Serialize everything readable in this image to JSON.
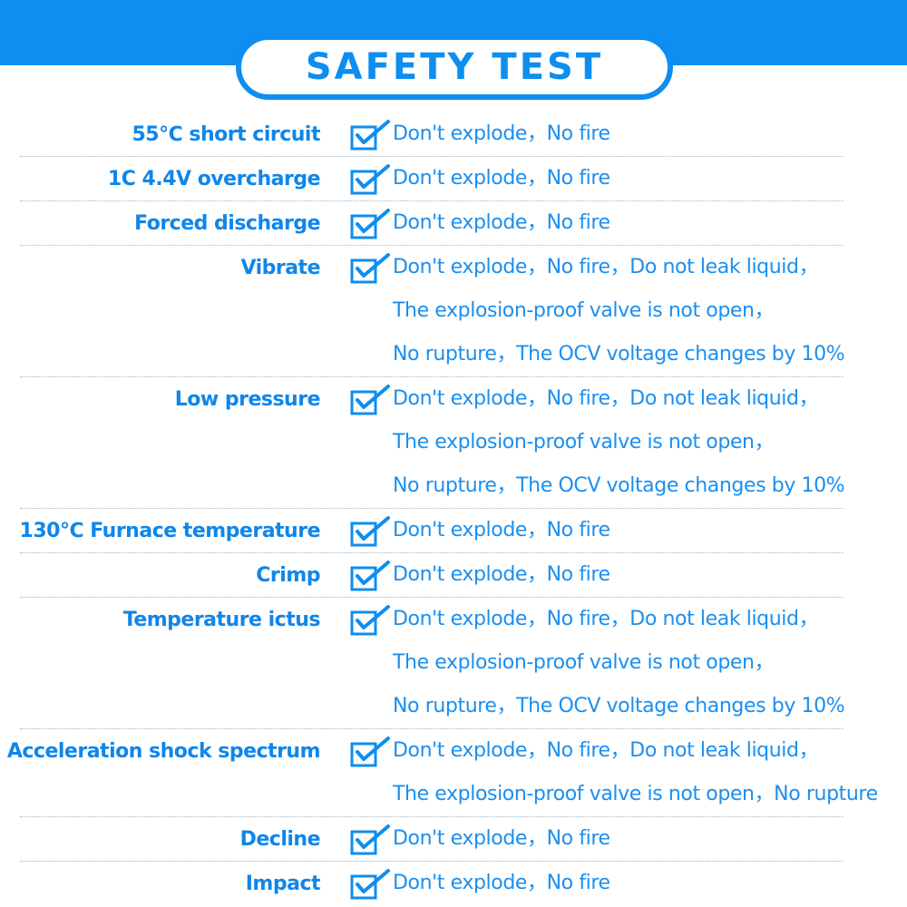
{
  "header": {
    "title": "SAFETY TEST",
    "accent_color": "#0d8ef0"
  },
  "tests": [
    {
      "name": "55℃ short circuit",
      "icon": "checked-box-icon",
      "result_lines": [
        "Don't explode，No fire"
      ]
    },
    {
      "name": "1C 4.4V overcharge",
      "icon": "checked-box-icon",
      "result_lines": [
        "Don't explode，No fire"
      ]
    },
    {
      "name": "Forced discharge",
      "icon": "checked-box-icon",
      "result_lines": [
        "Don't explode，No fire"
      ]
    },
    {
      "name": "Vibrate",
      "icon": "checked-box-icon",
      "result_lines": [
        "Don't explode，No fire，Do not leak liquid，",
        "The explosion-proof valve is not open，",
        "No rupture，The OCV voltage changes by 10%"
      ]
    },
    {
      "name": "Low pressure",
      "icon": "checked-box-icon",
      "result_lines": [
        "Don't explode，No fire，Do not leak liquid，",
        "The explosion-proof valve is not open，",
        "No rupture，The OCV voltage changes by 10%"
      ]
    },
    {
      "name": "130℃ Furnace temperature",
      "icon": "checked-box-icon",
      "result_lines": [
        "Don't explode，No fire"
      ]
    },
    {
      "name": "Crimp",
      "icon": "checked-box-icon",
      "result_lines": [
        "Don't explode，No fire"
      ]
    },
    {
      "name": "Temperature ictus",
      "icon": "checked-box-icon",
      "result_lines": [
        "Don't explode，No fire，Do not leak liquid，",
        "The explosion-proof valve is not open，",
        "No rupture，The OCV voltage changes by 10%"
      ]
    },
    {
      "name": "Acceleration shock spectrum",
      "icon": "checked-box-icon",
      "result_lines": [
        "Don't explode，No fire，Do not leak liquid，",
        "The explosion-proof valve is not open，No rupture"
      ]
    },
    {
      "name": "Decline",
      "icon": "checked-box-icon",
      "result_lines": [
        "Don't explode，No fire"
      ]
    },
    {
      "name": "Impact",
      "icon": "checked-box-icon",
      "result_lines": [
        "Don't explode，No fire"
      ]
    }
  ]
}
